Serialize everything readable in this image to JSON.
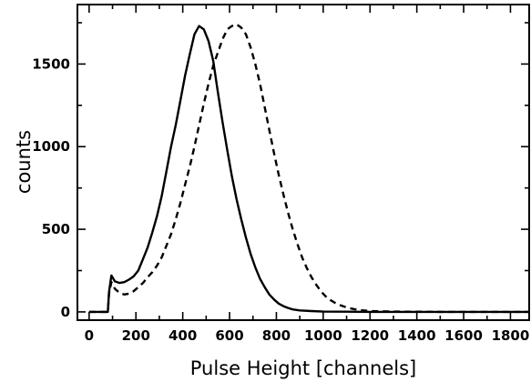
{
  "chart_data": {
    "type": "line",
    "title": "",
    "xlabel": "Pulse Height [channels]",
    "ylabel": "counts",
    "xlim": [
      -50,
      1880
    ],
    "ylim": [
      -50,
      1860
    ],
    "x_ticks": [
      0,
      200,
      400,
      600,
      800,
      1000,
      1200,
      1400,
      1600,
      1800
    ],
    "y_ticks": [
      0,
      500,
      1000,
      1500
    ],
    "grid": false,
    "legend": "none",
    "series": [
      {
        "line_style": "solid",
        "color": "#000000",
        "points": [
          [
            0,
            0
          ],
          [
            80,
            0
          ],
          [
            85,
            120
          ],
          [
            95,
            220
          ],
          [
            110,
            185
          ],
          [
            130,
            175
          ],
          [
            150,
            180
          ],
          [
            170,
            195
          ],
          [
            190,
            215
          ],
          [
            210,
            250
          ],
          [
            230,
            320
          ],
          [
            250,
            390
          ],
          [
            270,
            480
          ],
          [
            290,
            580
          ],
          [
            310,
            700
          ],
          [
            330,
            850
          ],
          [
            350,
            1000
          ],
          [
            370,
            1130
          ],
          [
            390,
            1280
          ],
          [
            410,
            1430
          ],
          [
            430,
            1560
          ],
          [
            450,
            1680
          ],
          [
            470,
            1730
          ],
          [
            490,
            1710
          ],
          [
            510,
            1640
          ],
          [
            530,
            1520
          ],
          [
            550,
            1330
          ],
          [
            570,
            1150
          ],
          [
            590,
            980
          ],
          [
            610,
            820
          ],
          [
            630,
            680
          ],
          [
            650,
            560
          ],
          [
            670,
            450
          ],
          [
            690,
            350
          ],
          [
            710,
            270
          ],
          [
            730,
            200
          ],
          [
            750,
            150
          ],
          [
            770,
            105
          ],
          [
            790,
            75
          ],
          [
            810,
            50
          ],
          [
            830,
            35
          ],
          [
            850,
            24
          ],
          [
            870,
            15
          ],
          [
            900,
            9
          ],
          [
            950,
            5
          ],
          [
            1000,
            2
          ],
          [
            1100,
            1
          ],
          [
            1200,
            0
          ],
          [
            1880,
            0
          ]
        ]
      },
      {
        "line_style": "dashed",
        "color": "#000000",
        "points": [
          [
            0,
            0
          ],
          [
            80,
            0
          ],
          [
            85,
            110
          ],
          [
            95,
            180
          ],
          [
            110,
            140
          ],
          [
            130,
            115
          ],
          [
            150,
            105
          ],
          [
            170,
            110
          ],
          [
            190,
            125
          ],
          [
            210,
            150
          ],
          [
            230,
            175
          ],
          [
            250,
            210
          ],
          [
            270,
            240
          ],
          [
            290,
            280
          ],
          [
            310,
            330
          ],
          [
            330,
            400
          ],
          [
            350,
            470
          ],
          [
            370,
            560
          ],
          [
            390,
            660
          ],
          [
            410,
            770
          ],
          [
            430,
            880
          ],
          [
            450,
            1000
          ],
          [
            470,
            1130
          ],
          [
            490,
            1260
          ],
          [
            510,
            1380
          ],
          [
            530,
            1490
          ],
          [
            550,
            1570
          ],
          [
            570,
            1650
          ],
          [
            590,
            1710
          ],
          [
            610,
            1730
          ],
          [
            630,
            1740
          ],
          [
            650,
            1720
          ],
          [
            670,
            1680
          ],
          [
            690,
            1600
          ],
          [
            710,
            1500
          ],
          [
            730,
            1380
          ],
          [
            750,
            1240
          ],
          [
            770,
            1100
          ],
          [
            790,
            960
          ],
          [
            810,
            830
          ],
          [
            830,
            710
          ],
          [
            850,
            600
          ],
          [
            870,
            500
          ],
          [
            890,
            410
          ],
          [
            910,
            330
          ],
          [
            930,
            265
          ],
          [
            950,
            210
          ],
          [
            970,
            165
          ],
          [
            990,
            125
          ],
          [
            1010,
            95
          ],
          [
            1030,
            72
          ],
          [
            1050,
            55
          ],
          [
            1070,
            42
          ],
          [
            1090,
            32
          ],
          [
            1110,
            24
          ],
          [
            1130,
            17
          ],
          [
            1160,
            10
          ],
          [
            1200,
            5
          ],
          [
            1300,
            2
          ],
          [
            1400,
            1
          ],
          [
            1500,
            0
          ],
          [
            1880,
            0
          ]
        ]
      }
    ]
  }
}
